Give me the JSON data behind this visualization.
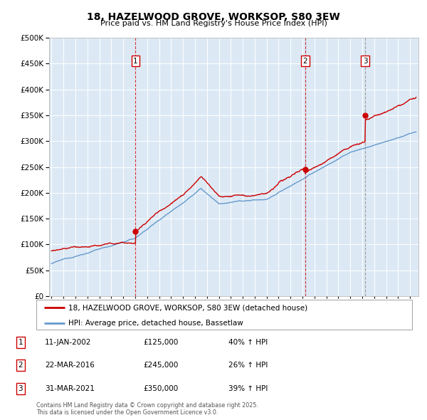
{
  "title": "18, HAZELWOOD GROVE, WORKSOP, S80 3EW",
  "subtitle": "Price paid vs. HM Land Registry's House Price Index (HPI)",
  "ylim": [
    0,
    500000
  ],
  "yticks": [
    0,
    50000,
    100000,
    150000,
    200000,
    250000,
    300000,
    350000,
    400000,
    450000,
    500000
  ],
  "ytick_labels": [
    "£0",
    "£50K",
    "£100K",
    "£150K",
    "£200K",
    "£250K",
    "£300K",
    "£350K",
    "£400K",
    "£450K",
    "£500K"
  ],
  "bg_color": "#dce9f5",
  "red_color": "#cc0000",
  "blue_color": "#6699cc",
  "sale_year_vals": [
    2002.03,
    2016.22,
    2021.25
  ],
  "sale_prices": [
    125000,
    245000,
    350000
  ],
  "sale_labels": [
    "1",
    "2",
    "3"
  ],
  "legend_entries": [
    "18, HAZELWOOD GROVE, WORKSOP, S80 3EW (detached house)",
    "HPI: Average price, detached house, Bassetlaw"
  ],
  "footer": "Contains HM Land Registry data © Crown copyright and database right 2025.\nThis data is licensed under the Open Government Licence v3.0.",
  "table_rows": [
    {
      "num": "1",
      "date": "11-JAN-2002",
      "price": "£125,000",
      "pct": "40% ↑ HPI"
    },
    {
      "num": "2",
      "date": "22-MAR-2016",
      "price": "£245,000",
      "pct": "26% ↑ HPI"
    },
    {
      "num": "3",
      "date": "31-MAR-2021",
      "price": "£350,000",
      "pct": "39% ↑ HPI"
    }
  ]
}
